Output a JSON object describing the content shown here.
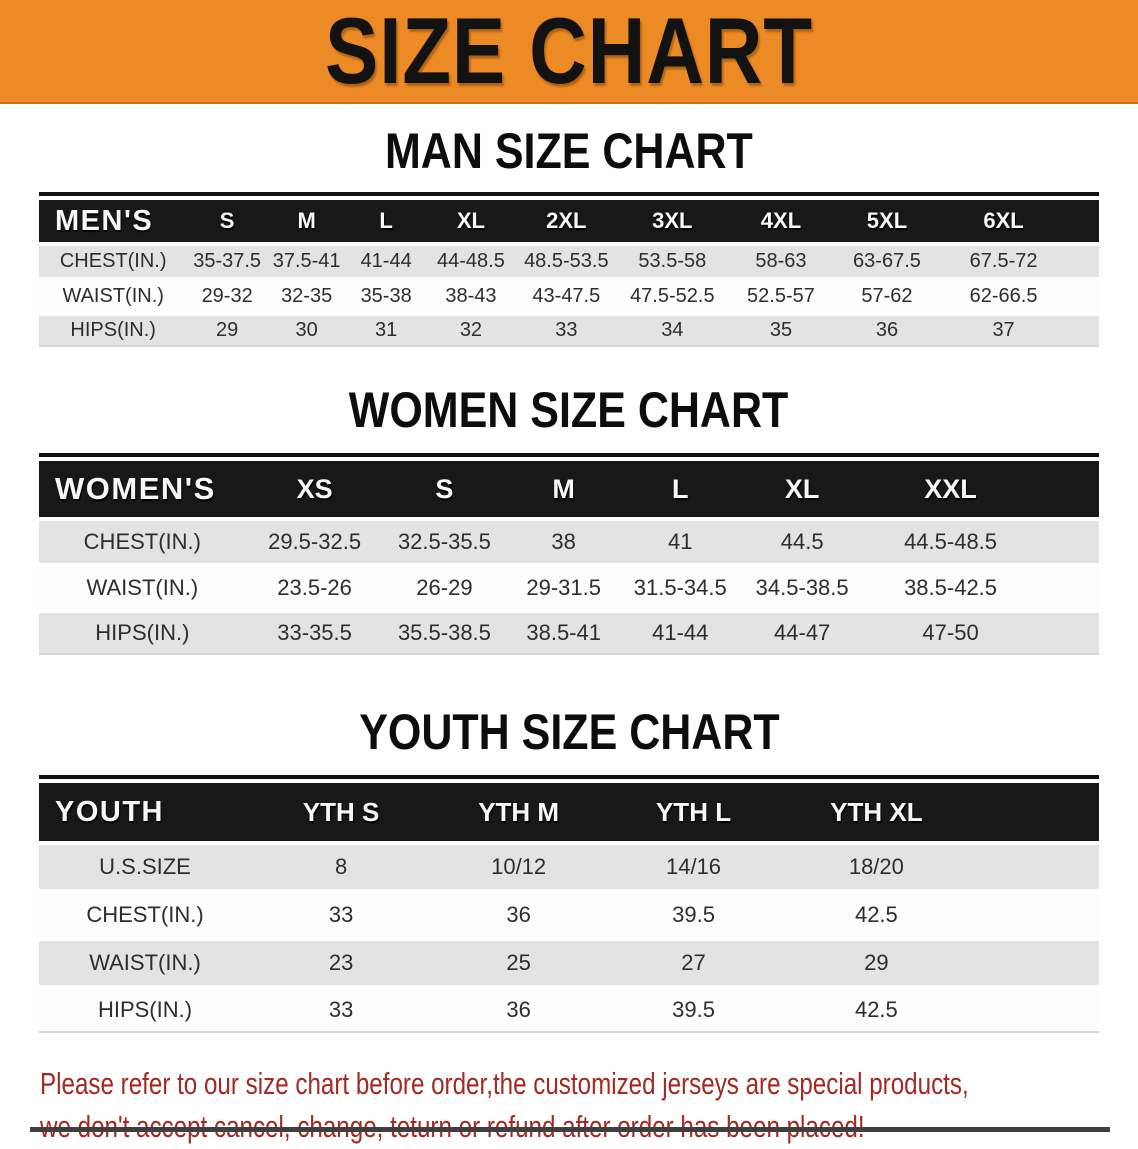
{
  "banner": {
    "title": "SIZE CHART"
  },
  "sections": [
    {
      "id": "men",
      "title": "MAN SIZE CHART",
      "header_label": "MEN'S",
      "columns": [
        "S",
        "M",
        "L",
        "XL",
        "2XL",
        "3XL",
        "4XL",
        "5XL",
        "6XL"
      ],
      "rows": [
        {
          "label": "CHEST(IN.)",
          "values": [
            "35-37.5",
            "37.5-41",
            "41-44",
            "44-48.5",
            "48.5-53.5",
            "53.5-58",
            "58-63",
            "63-67.5",
            "67.5-72"
          ]
        },
        {
          "label": "WAIST(IN.)",
          "values": [
            "29-32",
            "32-35",
            "35-38",
            "38-43",
            "43-47.5",
            "47.5-52.5",
            "52.5-57",
            "57-62",
            "62-66.5"
          ]
        },
        {
          "label": "HIPS(IN.)",
          "values": [
            "29",
            "30",
            "31",
            "32",
            "33",
            "34",
            "35",
            "36",
            "37"
          ]
        }
      ]
    },
    {
      "id": "women",
      "title": "WOMEN SIZE CHART",
      "header_label": "WOMEN'S",
      "columns": [
        "XS",
        "S",
        "M",
        "L",
        "XL",
        "XXL"
      ],
      "rows": [
        {
          "label": "CHEST(IN.)",
          "values": [
            "29.5-32.5",
            "32.5-35.5",
            "38",
            "41",
            "44.5",
            "44.5-48.5"
          ]
        },
        {
          "label": "WAIST(IN.)",
          "values": [
            "23.5-26",
            "26-29",
            "29-31.5",
            "31.5-34.5",
            "34.5-38.5",
            "38.5-42.5"
          ]
        },
        {
          "label": "HIPS(IN.)",
          "values": [
            "33-35.5",
            "35.5-38.5",
            "38.5-41",
            "41-44",
            "44-47",
            "47-50"
          ]
        }
      ]
    },
    {
      "id": "youth",
      "title": "YOUTH SIZE CHART",
      "header_label": "YOUTH",
      "columns": [
        "YTH S",
        "YTH M",
        "YTH L",
        "YTH XL"
      ],
      "rows": [
        {
          "label": "U.S.SIZE",
          "values": [
            "8",
            "10/12",
            "14/16",
            "18/20"
          ]
        },
        {
          "label": "CHEST(IN.)",
          "values": [
            "33",
            "36",
            "39.5",
            "42.5"
          ]
        },
        {
          "label": "WAIST(IN.)",
          "values": [
            "23",
            "25",
            "27",
            "29"
          ]
        },
        {
          "label": "HIPS(IN.)",
          "values": [
            "33",
            "36",
            "39.5",
            "42.5"
          ]
        }
      ]
    }
  ],
  "footer": {
    "line1": "Please refer to our size chart before order,the customized jerseys are special products,",
    "line2": "we don't accept cancel, change, teturn or refund after order has been placed!"
  },
  "colors": {
    "banner_bg": "#EC8A25",
    "banner_text": "#121212",
    "table_header_bg": "#181818",
    "table_header_text": "#F7F7F7",
    "row_stripe": "#E3E3E3",
    "footer_text": "#A32A22"
  }
}
